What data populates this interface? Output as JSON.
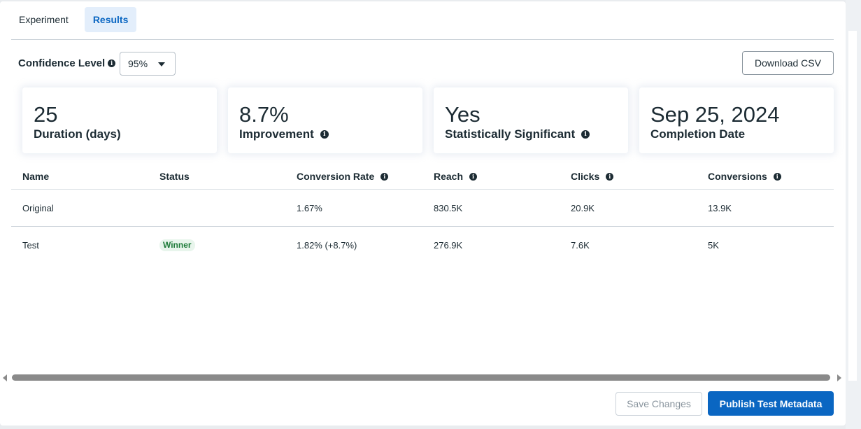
{
  "tabs": [
    {
      "label": "Experiment",
      "active": false
    },
    {
      "label": "Results",
      "active": true
    }
  ],
  "confidence": {
    "label": "Confidence Level",
    "selected": "95%"
  },
  "download_label": "Download CSV",
  "cards": [
    {
      "value": "25",
      "label": "Duration (days)",
      "has_info": false
    },
    {
      "value": "8.7%",
      "label": "Improvement",
      "has_info": true
    },
    {
      "value": "Yes",
      "label": "Statistically Significant",
      "has_info": true
    },
    {
      "value": "Sep 25, 2024",
      "label": "Completion Date",
      "has_info": false
    }
  ],
  "table": {
    "columns": [
      "Name",
      "Status",
      "Conversion Rate",
      "Reach",
      "Clicks",
      "Conversions"
    ],
    "rows": [
      {
        "name": "Original",
        "status": "",
        "conversion_rate": "1.67%",
        "reach": "830.5K",
        "clicks": "20.9K",
        "conversions": "13.9K"
      },
      {
        "name": "Test",
        "status": "Winner",
        "conversion_rate": "1.82% (+8.7%)",
        "reach": "276.9K",
        "clicks": "7.6K",
        "conversions": "5K"
      }
    ]
  },
  "footer": {
    "save_label": "Save Changes",
    "publish_label": "Publish Test Metadata"
  },
  "colors": {
    "primary": "#0a66c2",
    "winner_bg": "#e8f5ec",
    "winner_text": "#1e7b3a"
  }
}
